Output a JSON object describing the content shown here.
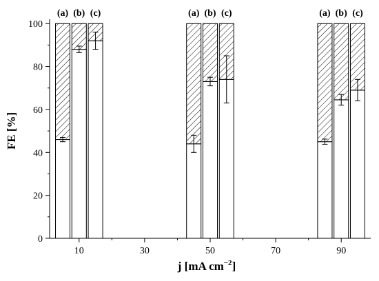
{
  "chart_data": {
    "type": "bar",
    "stacked": true,
    "xlabel_main": "j [mA cm",
    "xlabel_sup": "−2",
    "xlabel_tail": "]",
    "ylabel": "FE [%]",
    "xlim": [
      1,
      99
    ],
    "ylim": [
      0,
      102
    ],
    "x_ticks": [
      10,
      30,
      50,
      70,
      90
    ],
    "y_ticks": [
      0,
      20,
      40,
      60,
      80,
      100
    ],
    "groups": [
      {
        "center": 10,
        "bars": [
          {
            "label": "(a)",
            "x": 5,
            "value": 46,
            "error": 1,
            "total": 100
          },
          {
            "label": "(b)",
            "x": 10,
            "value": 88,
            "error": 1.5,
            "total": 100
          },
          {
            "label": "(c)",
            "x": 15,
            "value": 92,
            "error": 4,
            "total": 100
          }
        ]
      },
      {
        "center": 50,
        "bars": [
          {
            "label": "(a)",
            "x": 45,
            "value": 44,
            "error": 4,
            "total": 100
          },
          {
            "label": "(b)",
            "x": 50,
            "value": 73,
            "error": 2,
            "total": 100
          },
          {
            "label": "(c)",
            "x": 55,
            "value": 74,
            "error": 11,
            "total": 100
          }
        ]
      },
      {
        "center": 90,
        "bars": [
          {
            "label": "(a)",
            "x": 85,
            "value": 45,
            "error": 1.2,
            "total": 100
          },
          {
            "label": "(b)",
            "x": 90,
            "value": 64.5,
            "error": 2.5,
            "total": 100
          },
          {
            "label": "(c)",
            "x": 95,
            "value": 69,
            "error": 5,
            "total": 100
          }
        ]
      }
    ],
    "bar_fill": "#ffffff",
    "hatch_fill": "#ffffff",
    "hatch_color": "#000000",
    "grid": false
  }
}
